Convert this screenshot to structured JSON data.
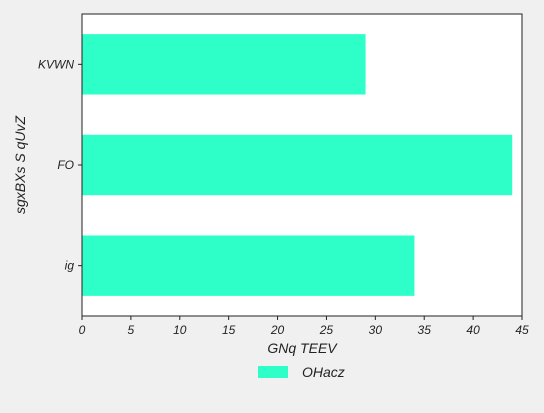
{
  "chart_data": {
    "type": "bar",
    "orientation": "horizontal",
    "categories": [
      "KVWN",
      "FO",
      "ig"
    ],
    "series": [
      {
        "name": "OHacz",
        "values": [
          29,
          44,
          34
        ]
      }
    ],
    "xlabel": "GNq TEEV",
    "ylabel": "sgxBXs S qUvZ",
    "xlim": [
      0,
      45
    ],
    "xticks": [
      0,
      5,
      10,
      15,
      20,
      25,
      30,
      35,
      40,
      45
    ],
    "grid": false,
    "legend_position": "bottom-center",
    "colors": {
      "bar": "#2effc8",
      "background": "#f0f0f0",
      "plot_background": "#ffffff",
      "axis": "#222222"
    }
  }
}
